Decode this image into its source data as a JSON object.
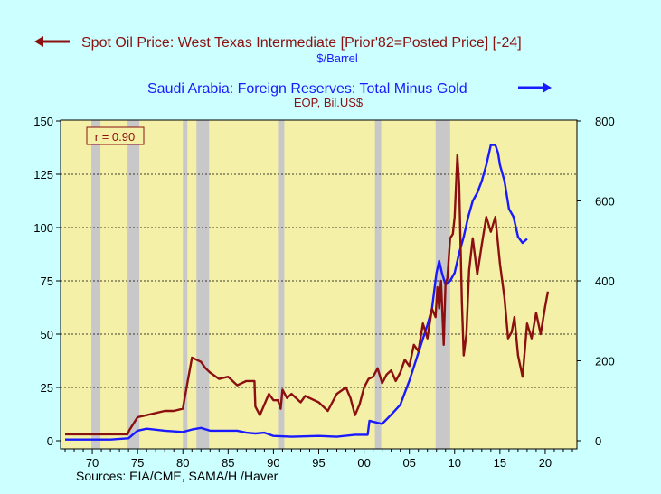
{
  "chart_data": {
    "type": "line",
    "colors": {
      "background": "#ccffff",
      "plot": "#f5f0a8",
      "recession": "#c8c8c8",
      "oil": "#8b1010",
      "reserves": "#1a1aff"
    },
    "legend": {
      "oil_title": "Spot Oil Price: West Texas Intermediate [Prior'82=Posted Price] [-24]",
      "oil_unit": "$/Barrel",
      "reserves_title": "Saudi Arabia: Foreign Reserves: Total Minus Gold",
      "reserves_unit": "EOP, Bil.US$"
    },
    "annotation": "r = 0.90",
    "source": "Sources:  EIA/CME, SAMA/H /Haver",
    "x_axis": {
      "range": [
        1966.5,
        2023.5
      ],
      "ticks": [
        1970,
        1975,
        1980,
        1985,
        1990,
        1995,
        2000,
        2005,
        2010,
        2015,
        2020
      ],
      "tick_labels": [
        "70",
        "75",
        "80",
        "85",
        "90",
        "95",
        "00",
        "05",
        "10",
        "15",
        "20"
      ]
    },
    "y_left": {
      "range": [
        0,
        150
      ],
      "ticks": [
        0,
        25,
        50,
        75,
        100,
        125,
        150
      ]
    },
    "y_right": {
      "range": [
        0,
        800
      ],
      "ticks": [
        0,
        200,
        400,
        600,
        800
      ]
    },
    "grid": "dashed horizontal",
    "recessions": [
      [
        1969.9,
        1970.9
      ],
      [
        1973.9,
        1975.2
      ],
      [
        1980.0,
        1980.5
      ],
      [
        1981.5,
        1982.9
      ],
      [
        1990.5,
        1991.2
      ],
      [
        2001.2,
        2001.9
      ],
      [
        2007.9,
        2009.5
      ]
    ],
    "series": [
      {
        "name": "Spot Oil Price: West Texas Intermediate [Prior'82=Posted Price] [-24]",
        "axis": "left",
        "x": [
          1967.0,
          1973.9,
          1974.1,
          1975.0,
          1976.0,
          1978.0,
          1979.0,
          1980.0,
          1980.5,
          1981.0,
          1981.5,
          1982.0,
          1982.5,
          1983.0,
          1984.0,
          1985.0,
          1986.0,
          1987.0,
          1987.9,
          1988.0,
          1988.5,
          1989.0,
          1989.5,
          1990.0,
          1990.5,
          1990.8,
          1991.0,
          1991.5,
          1992.0,
          1993.0,
          1993.5,
          1994.0,
          1995.0,
          1996.0,
          1997.0,
          1998.0,
          1998.5,
          1999.0,
          1999.5,
          2000.0,
          2000.5,
          2001.0,
          2001.5,
          2002.0,
          2002.5,
          2003.0,
          2003.5,
          2004.0,
          2004.5,
          2005.0,
          2005.5,
          2006.0,
          2006.5,
          2007.0,
          2007.5,
          2007.9,
          2008.1,
          2008.3,
          2008.5,
          2008.8,
          2009.0,
          2009.2,
          2009.5,
          2009.8,
          2010.0,
          2010.3,
          2010.5,
          2010.8,
          2011.0,
          2011.3,
          2011.6,
          2012.0,
          2012.5,
          2013.0,
          2013.5,
          2014.0,
          2014.5,
          2015.0,
          2015.5,
          2015.9,
          2016.3,
          2016.6,
          2017.0,
          2017.5,
          2018.0,
          2018.5,
          2019.0,
          2019.5,
          2020.0,
          2020.3
        ],
        "values": [
          3,
          3,
          5,
          11,
          12,
          14,
          14,
          15,
          27,
          39,
          38,
          37,
          34,
          32,
          29,
          30,
          26,
          28,
          28,
          16,
          12,
          17,
          22,
          19,
          19,
          15,
          24,
          20,
          22,
          18,
          21,
          20,
          18,
          14,
          22,
          25,
          20,
          12,
          17,
          25,
          29,
          30,
          34,
          27,
          31,
          33,
          28,
          32,
          38,
          35,
          45,
          42,
          55,
          48,
          62,
          58,
          72,
          62,
          75,
          45,
          74,
          76,
          95,
          97,
          105,
          134,
          120,
          65,
          40,
          50,
          80,
          95,
          78,
          92,
          105,
          98,
          105,
          83,
          67,
          48,
          51,
          58,
          40,
          30,
          55,
          48,
          60,
          50,
          63,
          70
        ]
      },
      {
        "name": "Saudi Arabia: Foreign Reserves: Total Minus Gold",
        "axis": "right",
        "x": [
          1967.0,
          1972.0,
          1974.0,
          1975.0,
          1976.0,
          1978.0,
          1980.0,
          1981.0,
          1982.0,
          1983.0,
          1986.0,
          1987.0,
          1988.0,
          1989.0,
          1990.0,
          1992.0,
          1995.0,
          1997.0,
          1999.0,
          2000.4,
          2000.6,
          2002.0,
          2003.0,
          2004.0,
          2005.0,
          2006.0,
          2007.0,
          2007.5,
          2008.0,
          2008.3,
          2008.6,
          2009.0,
          2009.5,
          2010.0,
          2010.5,
          2011.0,
          2011.5,
          2012.0,
          2012.5,
          2013.0,
          2013.5,
          2014.0,
          2014.5,
          2014.8,
          2015.0,
          2015.5,
          2016.0,
          2016.5,
          2017.0,
          2017.5,
          2018.0
        ],
        "values": [
          3,
          3,
          6,
          25,
          30,
          25,
          22,
          28,
          32,
          25,
          25,
          20,
          18,
          20,
          12,
          10,
          12,
          10,
          15,
          15,
          50,
          42,
          65,
          90,
          150,
          220,
          290,
          330,
          420,
          450,
          420,
          390,
          400,
          420,
          470,
          510,
          560,
          600,
          620,
          650,
          690,
          740,
          740,
          720,
          690,
          650,
          580,
          560,
          510,
          495,
          505
        ]
      }
    ]
  }
}
